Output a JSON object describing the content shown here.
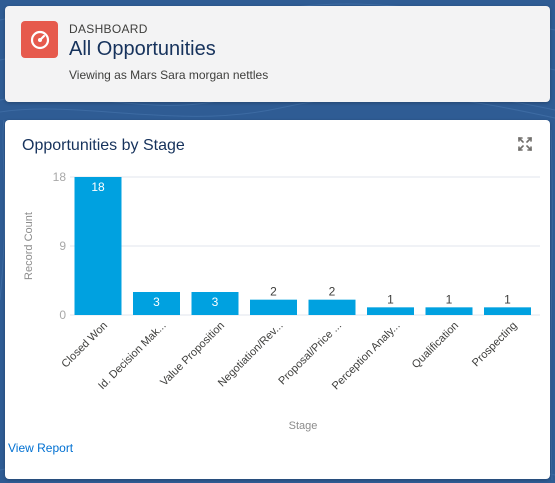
{
  "header": {
    "kicker": "DASHBOARD",
    "title": "All Opportunities",
    "subtitle": "Viewing as Mars Sara morgan nettles"
  },
  "chart_card": {
    "title": "Opportunities by Stage",
    "view_report": "View Report"
  },
  "colors": {
    "accent": "#e65a4d",
    "bar": "#00a1e0",
    "link": "#0070d2",
    "title": "#16325c"
  },
  "chart_data": {
    "type": "bar",
    "title": "Opportunities by Stage",
    "xlabel": "Stage",
    "ylabel": "Record Count",
    "ylim": [
      0,
      18
    ],
    "yticks": [
      0,
      9,
      18
    ],
    "grid": true,
    "categories": [
      "Closed Won",
      "Id. Decision Mak...",
      "Value Proposition",
      "Negotiation/Rev...",
      "Proposal/Price ...",
      "Perception Analy...",
      "Qualification",
      "Prospecting"
    ],
    "values": [
      18,
      3,
      3,
      2,
      2,
      1,
      1,
      1
    ]
  }
}
